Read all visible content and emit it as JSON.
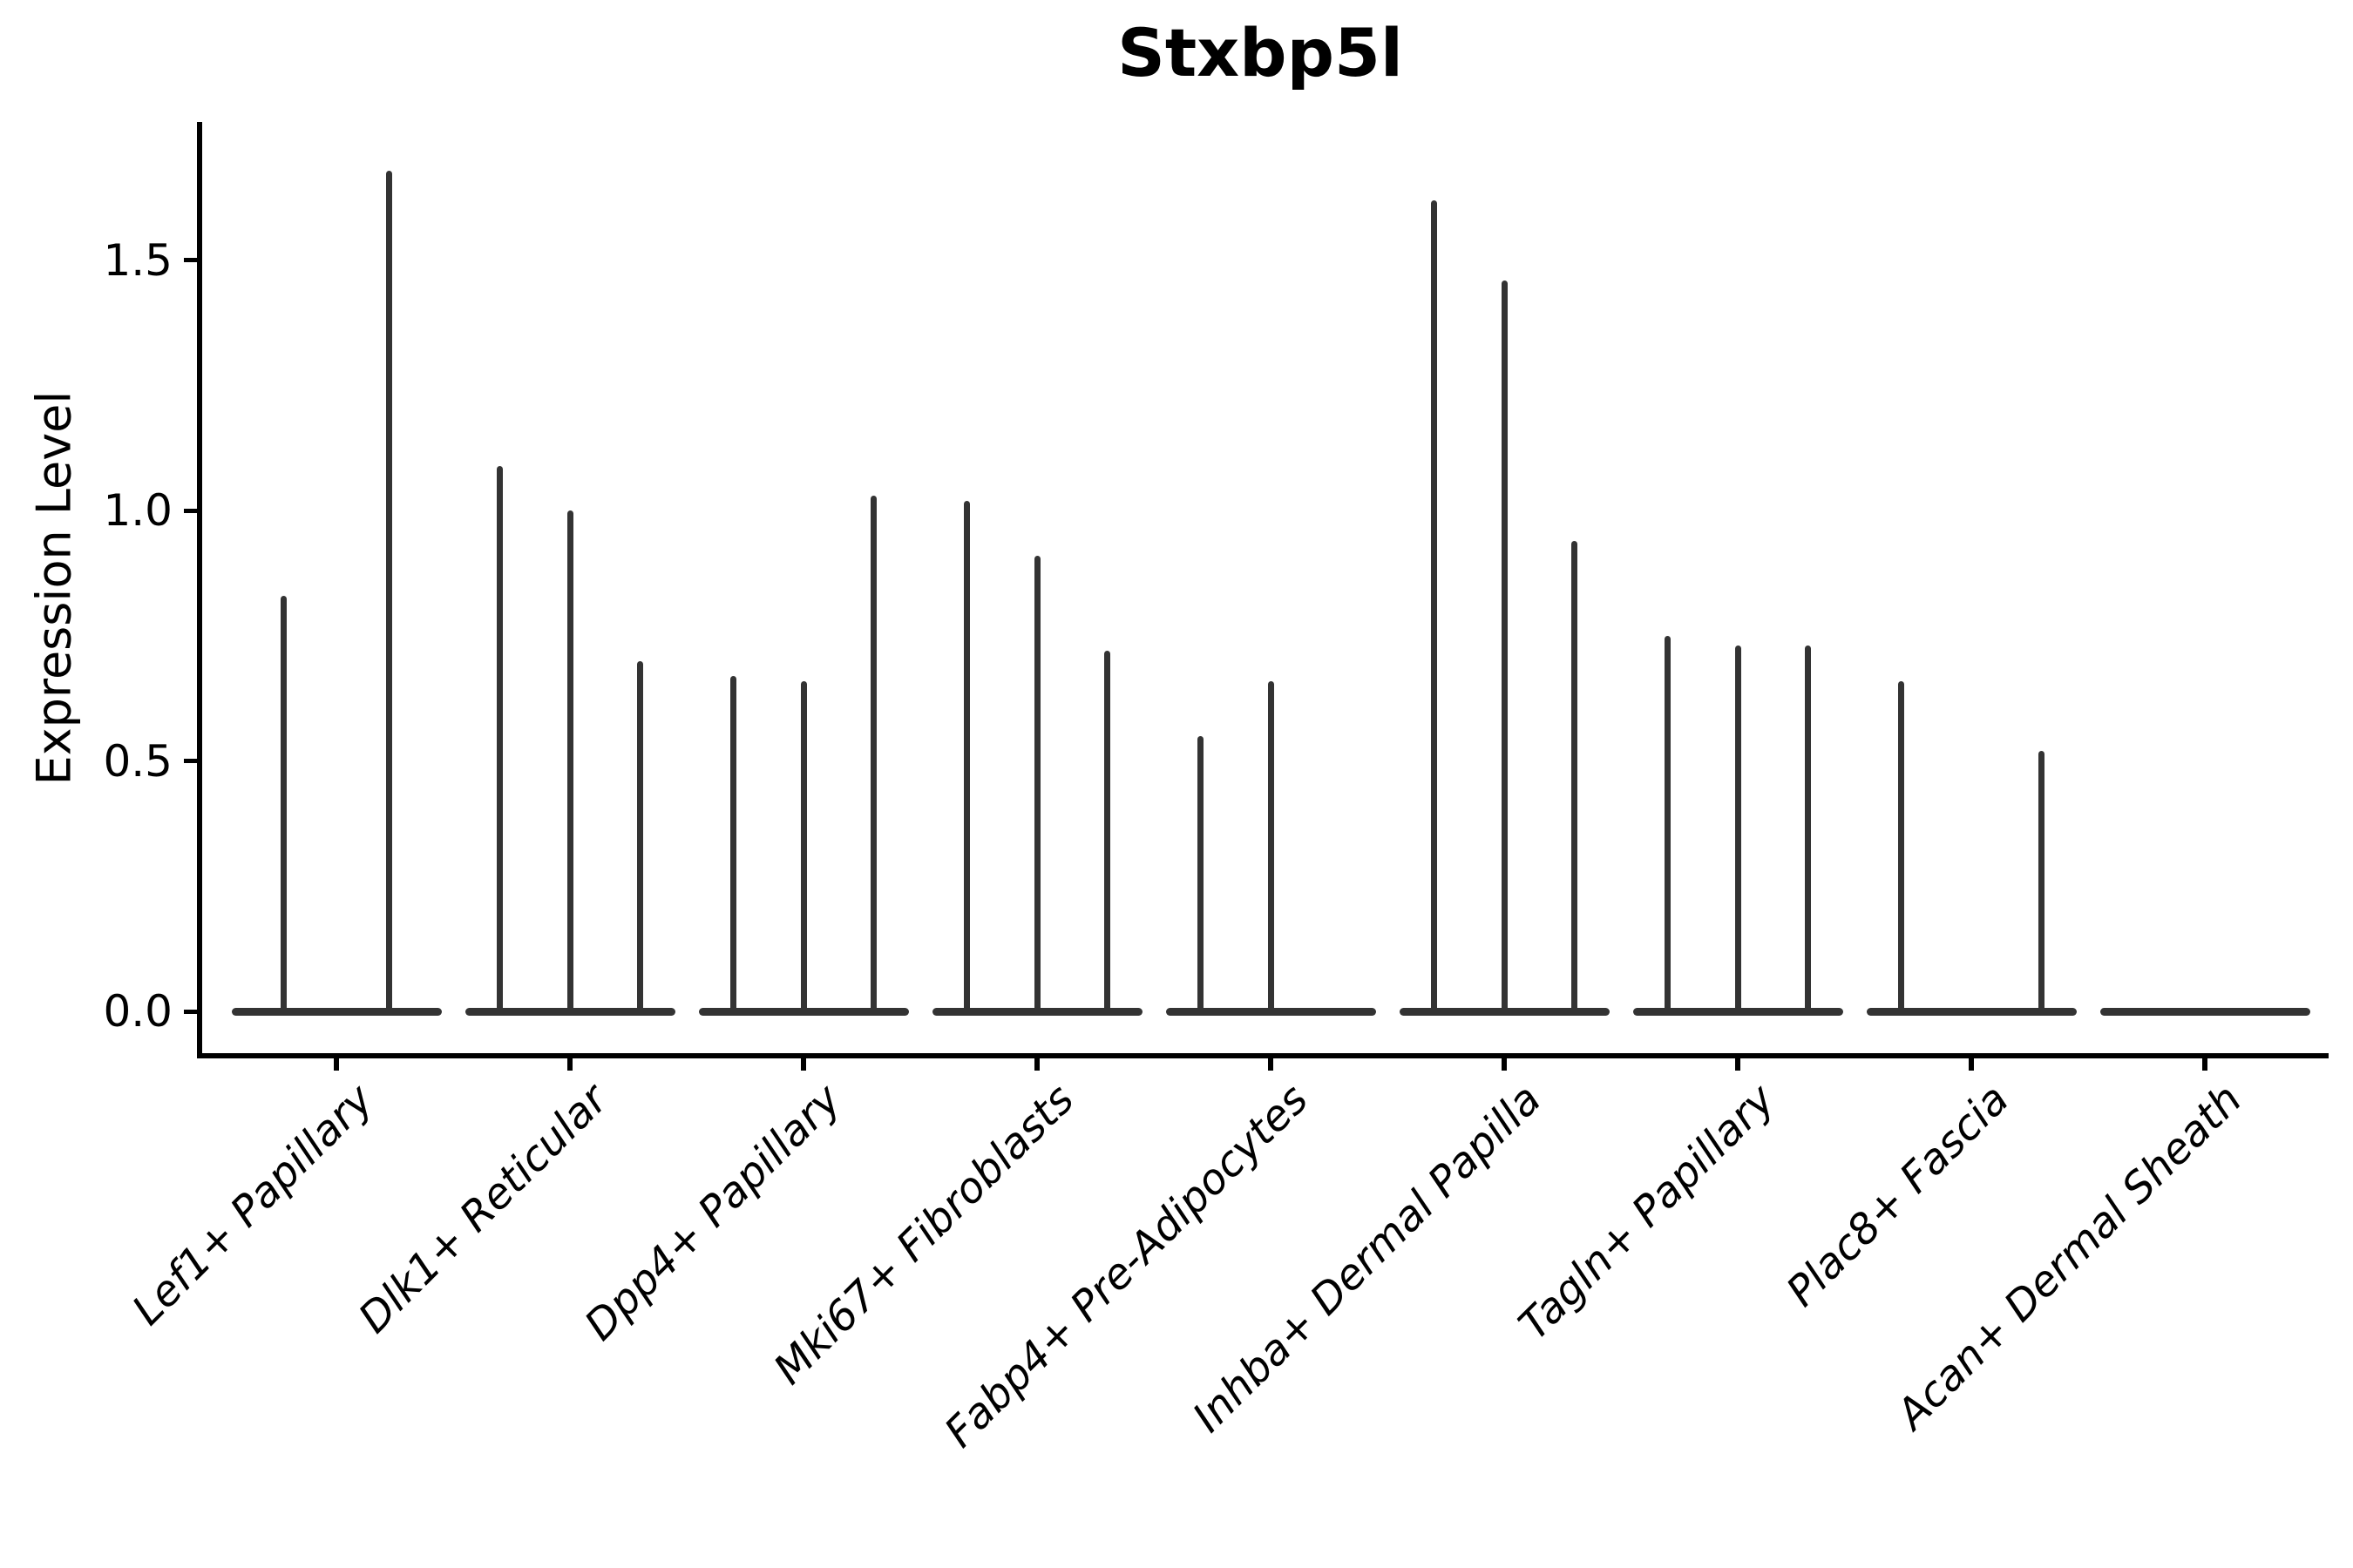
{
  "page": {
    "title": "Stxbp5l"
  },
  "colors": {
    "ink": "#333333",
    "axis": "#000000",
    "text": "#000000",
    "background": "#ffffff"
  },
  "chart_data": {
    "type": "violin",
    "title": "Stxbp5l",
    "xlabel": "",
    "ylabel": "Expression Level",
    "ylim": [
      -0.09,
      1.77
    ],
    "yticks": [
      0.0,
      0.5,
      1.0,
      1.5
    ],
    "ytick_labels": [
      "0.0",
      "0.5",
      "1.0",
      "1.5"
    ],
    "grid": false,
    "legend": "none",
    "categories": [
      "Lef1+ Papillary",
      "Dlk1+ Reticular",
      "Dpp4+ Papillary",
      "Mki67+ Fibroblasts",
      "Fabp4+ Pre-Adipocytes",
      "Inhba+ Dermal Papilla",
      "Tagln+ Papillary",
      "Plac8+ Fascia",
      "Acan+ Dermal Sheath"
    ],
    "groups": [
      {
        "category": "Lef1+ Papillary",
        "violin_peaks": [
          0.83,
          1.68
        ]
      },
      {
        "category": "Dlk1+ Reticular",
        "violin_peaks": [
          1.09,
          1.0,
          0.7
        ]
      },
      {
        "category": "Dpp4+ Papillary",
        "violin_peaks": [
          0.67,
          0.66,
          1.03
        ]
      },
      {
        "category": "Mki67+ Fibroblasts",
        "violin_peaks": [
          1.02,
          0.91,
          0.72
        ]
      },
      {
        "category": "Fabp4+ Pre-Adipocytes",
        "violin_peaks": [
          0.55,
          0.66,
          0.0
        ]
      },
      {
        "category": "Inhba+ Dermal Papilla",
        "violin_peaks": [
          1.62,
          1.46,
          0.94
        ]
      },
      {
        "category": "Tagln+ Papillary",
        "violin_peaks": [
          0.75,
          0.73,
          0.73
        ]
      },
      {
        "category": "Plac8+ Fascia",
        "violin_peaks": [
          0.66,
          0.0,
          0.52
        ]
      },
      {
        "category": "Acan+ Dermal Sheath",
        "violin_peaks": [
          0.0,
          0.0,
          0.0
        ]
      }
    ]
  }
}
